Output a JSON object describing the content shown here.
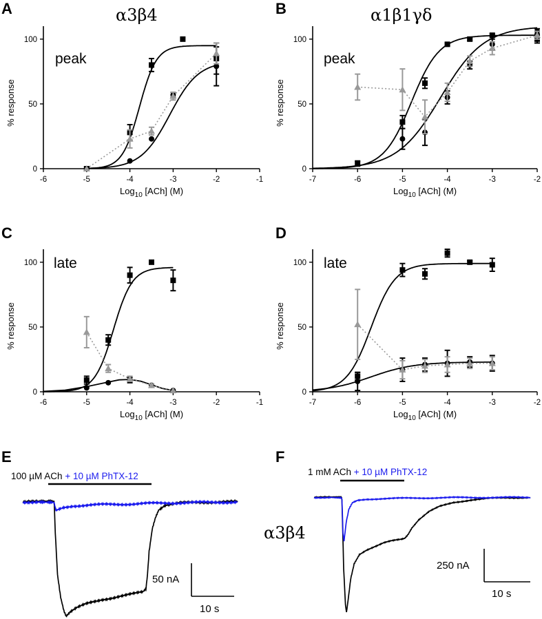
{
  "figure": {
    "side_label": "α3β4"
  },
  "chart_data": [
    {
      "panel": "A",
      "title": "α3β4",
      "label": "peak",
      "type": "scatter",
      "xlabel": "Log10 [ACh] (M)",
      "ylabel": "% response",
      "xlim": [
        -6,
        -1
      ],
      "ylim": [
        0,
        110
      ],
      "xticks": [
        -6,
        -5,
        -4,
        -3,
        -2,
        -1
      ],
      "yticks": [
        0,
        50,
        100
      ],
      "series": [
        {
          "marker": "square",
          "color": "#000000",
          "x": [
            -5,
            -4,
            -3.5,
            -2
          ],
          "y": [
            0,
            28,
            80,
            85
          ],
          "err": [
            0,
            6,
            5,
            12
          ]
        },
        {
          "marker": "circle",
          "color": "#000000",
          "x": [
            -5,
            -4,
            -3.5,
            -3,
            -2
          ],
          "y": [
            0,
            6,
            23,
            57,
            79
          ],
          "err": [
            0,
            0,
            0,
            2,
            15
          ]
        },
        {
          "marker": "triangle",
          "color": "#999999",
          "x": [
            -5,
            -4,
            -3.5,
            -3,
            -2
          ],
          "y": [
            0,
            23,
            29,
            56,
            89
          ],
          "err": [
            0,
            7,
            3,
            3,
            8
          ]
        }
      ],
      "square_isolated": {
        "x": -3,
        "y": 100
      },
      "fits": [
        {
          "top": 95,
          "ec50": -3.78,
          "n": 2.2
        },
        {
          "top": 83,
          "ec50": -3.08,
          "n": 1.3
        }
      ],
      "dotted_series_index": 2
    },
    {
      "panel": "B",
      "title": "α1β1γδ",
      "label": "peak",
      "type": "scatter",
      "xlabel": "Log10 [ACh] (M)",
      "ylabel": "% response",
      "xlim": [
        -7,
        -2
      ],
      "ylim": [
        0,
        110
      ],
      "xticks": [
        -7,
        -6,
        -5,
        -4,
        -3,
        -2
      ],
      "yticks": [
        0,
        50,
        100
      ],
      "series": [
        {
          "marker": "square",
          "color": "#000000",
          "x": [
            -6,
            -5,
            -4.5,
            -4,
            -3.5,
            -3,
            -2
          ],
          "y": [
            4,
            36,
            66,
            96,
            100,
            103,
            100
          ],
          "err": [
            2,
            5,
            4,
            1,
            1,
            1,
            3
          ]
        },
        {
          "marker": "circle",
          "color": "#000000",
          "x": [
            -5,
            -4.5,
            -4,
            -3.5,
            -3,
            -2
          ],
          "y": [
            23,
            28,
            55,
            80,
            96,
            106
          ],
          "err": [
            8,
            10,
            5,
            3,
            4,
            2
          ]
        },
        {
          "marker": "triangle",
          "color": "#999999",
          "x": [
            -6,
            -5,
            -4.5,
            -4,
            -3.5,
            -3,
            -2
          ],
          "y": [
            63,
            61,
            40,
            59,
            83,
            93,
            103
          ],
          "err": [
            10,
            16,
            13,
            7,
            4,
            5,
            3
          ]
        }
      ],
      "fits": [
        {
          "bottom": 0,
          "top": 103,
          "ec50": -4.8,
          "n": 1.4
        },
        {
          "bottom": 0,
          "top": 110,
          "ec50": -4.15,
          "n": 0.9
        }
      ],
      "dotted_series_index": 2
    },
    {
      "panel": "C",
      "label": "late",
      "type": "scatter",
      "xlabel": "Log10 [ACh] (M)",
      "ylabel": "% response",
      "xlim": [
        -6,
        -1
      ],
      "ylim": [
        0,
        110
      ],
      "xticks": [
        -6,
        -5,
        -4,
        -3,
        -2,
        -1
      ],
      "yticks": [
        0,
        50,
        100
      ],
      "series": [
        {
          "marker": "square",
          "color": "#000000",
          "x": [
            -5,
            -4.5,
            -4,
            -3.5,
            -3
          ],
          "y": [
            9,
            40,
            90,
            100,
            86
          ],
          "err": [
            3,
            4,
            6,
            0,
            8
          ]
        },
        {
          "marker": "circle",
          "color": "#000000",
          "x": [
            -5,
            -4.5,
            -4,
            -3.5,
            -3
          ],
          "y": [
            3,
            7,
            9,
            5,
            1
          ],
          "err": [
            0,
            0,
            2,
            1,
            0
          ]
        },
        {
          "marker": "triangle",
          "color": "#999999",
          "x": [
            -5,
            -4.5,
            -4,
            -3.5,
            -3
          ],
          "y": [
            46,
            18,
            10,
            5,
            1
          ],
          "err": [
            12,
            3,
            2,
            1,
            0
          ]
        }
      ],
      "fits": [
        {
          "kind": "sigmoid",
          "top": 96,
          "ec50": -4.38,
          "n": 2.0
        }
      ],
      "bell_fit": {
        "xs": [
          -6,
          -5.5,
          -5,
          -4.5,
          -4.25,
          -4,
          -3.75,
          -3.5,
          -3.25,
          -3
        ],
        "ys": [
          0.3,
          1.3,
          4,
          7.5,
          9.2,
          9.5,
          8.2,
          5.4,
          2.6,
          1
        ]
      },
      "dotted_series_index": 2
    },
    {
      "panel": "D",
      "label": "late",
      "type": "scatter",
      "xlabel": "Log10 [ACh] (M)",
      "ylabel": "% response",
      "xlim": [
        -7,
        -2
      ],
      "ylim": [
        0,
        110
      ],
      "xticks": [
        -7,
        -6,
        -5,
        -4,
        -3,
        -2
      ],
      "yticks": [
        0,
        50,
        100
      ],
      "series": [
        {
          "marker": "square",
          "color": "#000000",
          "x": [
            -6,
            -5,
            -4.5,
            -4,
            -3.5,
            -3
          ],
          "y": [
            12,
            94,
            91,
            107,
            100,
            98
          ],
          "err": [
            3,
            5,
            4,
            3,
            1,
            5
          ]
        },
        {
          "marker": "circle",
          "color": "#000000",
          "x": [
            -6,
            -5,
            -4.5,
            -4,
            -3.5,
            -3
          ],
          "y": [
            8,
            17,
            21,
            22,
            23,
            22
          ],
          "err": [
            7,
            9,
            5,
            10,
            4,
            6
          ]
        },
        {
          "marker": "triangle",
          "color": "#999999",
          "x": [
            -6,
            -5,
            -4.5,
            -4,
            -3.5,
            -3
          ],
          "y": [
            52,
            17,
            20,
            21,
            22,
            22
          ],
          "err": [
            27,
            7,
            5,
            6,
            4,
            5
          ]
        }
      ],
      "fits": [
        {
          "bottom": 0,
          "top": 99,
          "ec50": -5.7,
          "n": 1.6
        },
        {
          "bottom": 0,
          "top": 23,
          "ec50": -5.7,
          "n": 0.9
        }
      ],
      "dotted_series_index": 2
    },
    {
      "panel": "E",
      "type": "line",
      "stim_label_prefix": "100 µM ACh",
      "stim_label_suffix": " + 10 µM PhTX-12",
      "scale_y_label": "50 nA",
      "scale_x_label": "10 s",
      "ylim": [
        -300,
        20
      ],
      "series": [
        {
          "name": "",
          "color": "#000000",
          "x": [
            0,
            5,
            9.9,
            10,
            10.3,
            11,
            12,
            13,
            13.7,
            15,
            17,
            20,
            25,
            30,
            35,
            38,
            39,
            39.5,
            40,
            41,
            42,
            43,
            45,
            50,
            55,
            60,
            68
          ],
          "y": [
            0,
            0,
            0,
            -8,
            -80,
            -190,
            -250,
            -285,
            -300,
            -290,
            -280,
            -270,
            -258,
            -250,
            -243,
            -238,
            -230,
            -190,
            -130,
            -70,
            -40,
            -20,
            -8,
            -3,
            -1,
            0,
            0
          ]
        },
        {
          "name": "",
          "color": "#1a1aee",
          "x": [
            0,
            5,
            9.9,
            10,
            10.5,
            11.5,
            13,
            16,
            22,
            30,
            40,
            50,
            60,
            68
          ],
          "y": [
            0,
            0,
            0,
            -5,
            -24,
            -20,
            -15,
            -10,
            -8,
            -6,
            -4,
            -2,
            -1,
            0
          ]
        }
      ]
    },
    {
      "panel": "F",
      "type": "line",
      "stim_label_prefix": "1 mM ACh",
      "stim_label_suffix": " + 10 µM PhTX-12",
      "scale_y_label": "250 nA",
      "scale_x_label": "10 s",
      "ylim": [
        -1150,
        50
      ],
      "series": [
        {
          "name": "",
          "color": "#000000",
          "x": [
            0,
            5,
            7.9,
            8,
            8.2,
            8.5,
            9,
            9.3,
            9.8,
            10.5,
            11.5,
            13,
            15,
            18,
            20,
            22,
            24,
            25,
            26,
            27,
            28,
            30,
            33,
            36,
            40,
            45,
            50,
            55,
            62
          ],
          "y": [
            0,
            0,
            0,
            -30,
            -300,
            -700,
            -1050,
            -1130,
            -1000,
            -800,
            -650,
            -560,
            -520,
            -480,
            -450,
            -430,
            -415,
            -410,
            -400,
            -360,
            -300,
            -220,
            -140,
            -90,
            -50,
            -25,
            -10,
            -4,
            0
          ]
        },
        {
          "name": "",
          "color": "#1a1aee",
          "x": [
            0,
            5,
            7.9,
            8,
            8.3,
            8.6,
            9.2,
            10,
            11,
            12.5,
            15,
            20,
            30,
            40,
            62
          ],
          "y": [
            0,
            0,
            0,
            -30,
            -350,
            -430,
            -250,
            -120,
            -55,
            -30,
            -18,
            -12,
            -6,
            -2,
            0
          ]
        }
      ]
    }
  ]
}
